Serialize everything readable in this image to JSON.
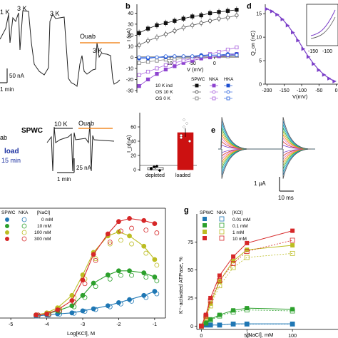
{
  "panel_a": {
    "letter": "",
    "step_labels": [
      "1 K",
      "3 K",
      "3 K",
      "3 K"
    ],
    "ouab_label": "Ouab",
    "scale_current": "50 nA",
    "scale_time": "1 min",
    "ouab_color": "#f28c28"
  },
  "panel_c": {
    "spwc_label": "SPWC",
    "step_label": "10 K",
    "ouab_label": "Ouab",
    "side_top": "ab",
    "side_load": "load",
    "side_time": "15 min",
    "scale_current": "25 nA",
    "scale_time": "1 min",
    "ouab_color": "#f28c28",
    "load_color": "#1a2fa0",
    "bar_chart": {
      "type": "bar",
      "ylabel": "I_p(nA)",
      "ylim": [
        -10,
        80
      ],
      "yticks": [
        0,
        20,
        40,
        60
      ],
      "categories": [
        "depleted",
        "loaded"
      ],
      "values": [
        3,
        52
      ],
      "errors": [
        2,
        6
      ],
      "points": [
        [
          1,
          4,
          5,
          -1,
          2
        ],
        [
          45,
          60,
          65,
          40,
          48,
          70
        ]
      ]
    }
  },
  "chart_data": [
    {
      "panel": "b",
      "type": "line",
      "xlabel": "V (mV)",
      "ylabel": "I (nA)",
      "x": [
        -170,
        -150,
        -130,
        -110,
        -90,
        -70,
        -50,
        -30,
        -10,
        10,
        30,
        50
      ],
      "xlim": [
        -175,
        55
      ],
      "ylim": [
        -32,
        48
      ],
      "xticks": [
        -100,
        -50,
        0
      ],
      "yticks": [
        -30,
        -20,
        -10,
        0,
        10,
        20,
        30,
        40
      ],
      "legend_title_cols": [
        "SPWC",
        "NKA",
        "HKA"
      ],
      "legend_rows": [
        "10 K ind",
        "OS 10 K",
        "OS 0 K"
      ],
      "series": [
        {
          "name": "10 K ind",
          "color": "#111111",
          "marker": "filled-square",
          "values": [
            22,
            26,
            29,
            31,
            33,
            35,
            37,
            38,
            40,
            41,
            42,
            43
          ]
        },
        {
          "name": "OS 10 K",
          "color": "#555555",
          "marker": "open-circle",
          "values": [
            11,
            15,
            18,
            21,
            24,
            27,
            29,
            31,
            33,
            35,
            36,
            38
          ]
        },
        {
          "name": "OS 0 K",
          "color": "#888888",
          "marker": "open-square",
          "values": [
            -5,
            -4,
            -3,
            -2,
            -2,
            -1,
            -1,
            0,
            0,
            1,
            1,
            2
          ]
        },
        {
          "color": "#8e44d0",
          "marker": "filled-square",
          "values": [
            -26,
            -20,
            -15,
            -11,
            -8,
            -5,
            -3,
            -1,
            0,
            1,
            2,
            3
          ]
        },
        {
          "color": "#b070e0",
          "marker": "open-square",
          "values": [
            -16,
            -13,
            -10,
            -7,
            -5,
            -3,
            -1,
            1,
            3,
            5,
            7,
            9
          ]
        },
        {
          "color": "#1f4fd0",
          "marker": "filled-circle",
          "values": [
            -1,
            -1,
            0,
            0,
            1,
            1,
            1,
            2,
            2,
            2,
            3,
            3
          ]
        },
        {
          "color": "#3a6ee0",
          "marker": "open-circle",
          "values": [
            0,
            0,
            0,
            1,
            1,
            1,
            1,
            1,
            2,
            2,
            2,
            2
          ]
        }
      ]
    },
    {
      "panel": "d",
      "type": "line",
      "xlabel": "V(mV)",
      "ylabel": "Q_on (nC)",
      "x": [
        -200,
        -185,
        -170,
        -155,
        -140,
        -125,
        -110,
        -95,
        -80,
        -65,
        -50,
        -35,
        -20,
        -5
      ],
      "values": [
        16,
        15.5,
        14.8,
        13.8,
        12.5,
        11,
        9.3,
        7.5,
        5.8,
        4.3,
        3.0,
        2.0,
        1.2,
        0.6
      ],
      "xlim": [
        -205,
        5
      ],
      "ylim": [
        0,
        17
      ],
      "xticks": [
        -200,
        -150,
        -100,
        -50,
        0
      ],
      "yticks": [
        0,
        5,
        10,
        15
      ],
      "color": "#7b3fc8",
      "inset_xticks": [
        -150,
        -100
      ]
    },
    {
      "panel": "e",
      "type": "line",
      "scale_current": "1 µA",
      "scale_time": "10 ms",
      "series_colors": [
        "#7b3fc8",
        "#d62728",
        "#e377c2",
        "#ff7f0e",
        "#bcbd22",
        "#2ca02c",
        "#17becf",
        "#1f77b4",
        "#555555"
      ]
    },
    {
      "panel": "f",
      "type": "scatter",
      "xlabel": "Log[KCl], M",
      "xlim": [
        -5.3,
        -0.7
      ],
      "ylim": [
        -2,
        105
      ],
      "xticks": [
        -5,
        -4,
        -3,
        -2,
        -1
      ],
      "legend_headers": [
        "SPWC",
        "NKA",
        "[NaCl]"
      ],
      "legend_labels": [
        "0 mM",
        "10 mM",
        "100 mM",
        "300 mM"
      ],
      "series": [
        {
          "name": "0 mM",
          "color": "#1f77b4",
          "x": [
            -4.3,
            -4.0,
            -3.7,
            -3.3,
            -3.0,
            -2.7,
            -2.3,
            -2.0,
            -1.7,
            -1.3,
            -1.0
          ],
          "values": [
            0,
            1,
            2,
            3,
            5,
            7,
            10,
            13,
            16,
            20,
            24
          ]
        },
        {
          "name": "10 mM",
          "color": "#2ca02c",
          "x": [
            -4.3,
            -4.0,
            -3.7,
            -3.3,
            -3.0,
            -2.7,
            -2.3,
            -2.0,
            -1.7,
            -1.3,
            -1.0
          ],
          "values": [
            1,
            2,
            5,
            10,
            20,
            32,
            40,
            44,
            44,
            42,
            38
          ]
        },
        {
          "name": "100 mM",
          "color": "#bcbd22",
          "x": [
            -4.3,
            -4.0,
            -3.7,
            -3.3,
            -3.0,
            -2.7,
            -2.3,
            -2.0,
            -1.7,
            -1.3,
            -1.0
          ],
          "values": [
            1,
            3,
            8,
            20,
            40,
            62,
            78,
            82,
            78,
            68,
            55
          ]
        },
        {
          "name": "300 mM",
          "color": "#d62728",
          "x": [
            -4.3,
            -4.0,
            -3.7,
            -3.3,
            -3.0,
            -2.7,
            -2.3,
            -2.0,
            -1.7,
            -1.3,
            -1.0
          ],
          "values": [
            1,
            2,
            6,
            15,
            35,
            60,
            80,
            92,
            95,
            93,
            90
          ]
        }
      ]
    },
    {
      "panel": "g",
      "type": "line",
      "xlabel": "[NaCl], mM",
      "ylabel": "K⁺-activated ATPase, %",
      "xlim": [
        -5,
        150
      ],
      "ylim": [
        -3,
        100
      ],
      "xticks": [
        0,
        50,
        100
      ],
      "yticks": [
        0,
        25,
        50,
        75
      ],
      "legend_headers": [
        "SPWC",
        "NKA",
        "[KCl]"
      ],
      "legend_labels": [
        "0.01 mM",
        "0.1 mM",
        "1 mM",
        "10 mM"
      ],
      "x": [
        0,
        5,
        10,
        20,
        35,
        50,
        100
      ],
      "series": [
        {
          "name": "0.01 mM",
          "color": "#1f77b4",
          "values": [
            0,
            1,
            1,
            1,
            2,
            2,
            2
          ]
        },
        {
          "name": "0.1 mM",
          "color": "#2ca02c",
          "values": [
            0,
            3,
            6,
            10,
            14,
            16,
            15
          ]
        },
        {
          "name": "1 mM",
          "color": "#bcbd22",
          "values": [
            0,
            8,
            20,
            40,
            58,
            68,
            72
          ]
        },
        {
          "name": "10 mM",
          "color": "#d62728",
          "values": [
            0,
            10,
            25,
            45,
            62,
            74,
            85
          ]
        }
      ]
    }
  ]
}
